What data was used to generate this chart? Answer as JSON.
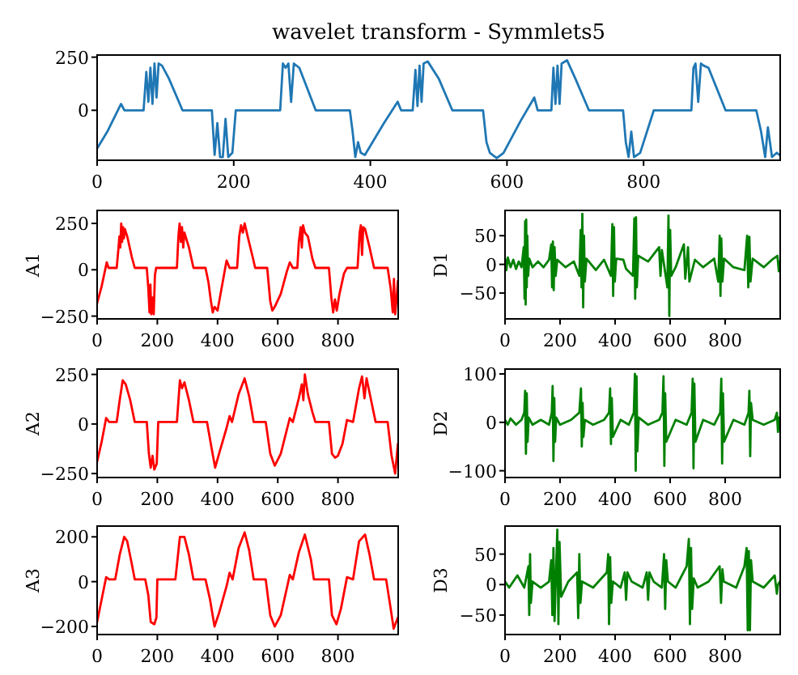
{
  "chart_data": [
    {
      "type": "line",
      "title": "wavelet transform - Symmlets5",
      "color": "#1f77b4",
      "xlim": [
        0,
        1000
      ],
      "ylim": [
        -235,
        260
      ],
      "xticks": [
        0,
        200,
        400,
        600,
        800
      ],
      "yticks": [
        0,
        250
      ],
      "x": [
        0,
        15,
        35,
        40,
        68,
        72,
        75,
        78,
        81,
        84,
        87,
        90,
        95,
        105,
        125,
        168,
        172,
        176,
        180,
        184,
        188,
        192,
        198,
        203,
        268,
        272,
        276,
        280,
        284,
        288,
        296,
        320,
        370,
        374,
        378,
        382,
        386,
        392,
        420,
        440,
        445,
        462,
        466,
        469,
        472,
        475,
        478,
        484,
        500,
        520,
        565,
        570,
        575,
        585,
        595,
        620,
        640,
        645,
        665,
        668,
        671,
        674,
        677,
        680,
        688,
        700,
        720,
        770,
        774,
        778,
        782,
        786,
        795,
        815,
        870,
        873,
        876,
        880,
        884,
        888,
        895,
        920,
        965,
        972,
        978,
        982,
        988,
        995,
        999
      ],
      "values": [
        -180,
        -100,
        30,
        0,
        0,
        180,
        40,
        200,
        30,
        220,
        60,
        220,
        210,
        150,
        0,
        0,
        -210,
        -60,
        -220,
        -220,
        -40,
        -220,
        -200,
        0,
        0,
        220,
        200,
        220,
        40,
        220,
        200,
        0,
        0,
        -100,
        -220,
        -150,
        -200,
        -210,
        -60,
        40,
        0,
        0,
        190,
        20,
        210,
        40,
        220,
        230,
        150,
        0,
        0,
        -150,
        -200,
        -225,
        -200,
        -50,
        60,
        0,
        0,
        200,
        30,
        210,
        30,
        220,
        235,
        150,
        0,
        0,
        -150,
        -220,
        -100,
        -220,
        -200,
        0,
        0,
        200,
        220,
        40,
        220,
        210,
        200,
        0,
        0,
        -100,
        -220,
        -80,
        -220,
        -200,
        -210
      ]
    },
    {
      "type": "line",
      "ylabel": "A1",
      "color": "#ff0000",
      "xlim": [
        0,
        1000
      ],
      "ylim": [
        -265,
        320
      ],
      "xticks": [
        0,
        200,
        400,
        600,
        800
      ],
      "yticks": [
        {
          "value": -250,
          "label": "−250"
        },
        0,
        250
      ],
      "x": [
        0,
        15,
        32,
        38,
        65,
        70,
        74,
        77,
        80,
        83,
        86,
        89,
        92,
        100,
        115,
        125,
        165,
        170,
        174,
        177,
        180,
        184,
        188,
        192,
        196,
        265,
        270,
        274,
        278,
        282,
        286,
        290,
        305,
        320,
        360,
        370,
        378,
        384,
        390,
        400,
        420,
        430,
        440,
        465,
        472,
        478,
        484,
        490,
        500,
        515,
        525,
        565,
        575,
        582,
        590,
        610,
        630,
        640,
        650,
        665,
        670,
        676,
        680,
        684,
        690,
        700,
        715,
        725,
        770,
        778,
        784,
        790,
        796,
        805,
        820,
        830,
        865,
        872,
        876,
        880,
        884,
        890,
        905,
        920,
        965,
        975,
        982,
        986,
        990,
        995,
        999
      ],
      "values": [
        -180,
        -90,
        40,
        10,
        10,
        100,
        180,
        120,
        250,
        150,
        230,
        170,
        220,
        180,
        70,
        10,
        10,
        -100,
        -230,
        -80,
        -240,
        -150,
        -240,
        -30,
        10,
        10,
        180,
        250,
        150,
        230,
        120,
        200,
        120,
        10,
        10,
        -70,
        -170,
        -230,
        -200,
        -220,
        -40,
        50,
        10,
        10,
        180,
        240,
        200,
        250,
        180,
        80,
        10,
        10,
        -170,
        -220,
        -200,
        -130,
        -10,
        40,
        10,
        10,
        150,
        230,
        120,
        240,
        200,
        180,
        60,
        10,
        10,
        -150,
        -230,
        -160,
        -220,
        -130,
        -20,
        10,
        10,
        200,
        240,
        80,
        230,
        220,
        120,
        10,
        10,
        -100,
        -230,
        -50,
        -240,
        -150,
        -60
      ]
    },
    {
      "type": "line",
      "ylabel": "D1",
      "color": "#008000",
      "xlim": [
        0,
        1000
      ],
      "ylim": [
        -95,
        94
      ],
      "xticks": [
        0,
        200,
        400,
        600,
        800
      ],
      "yticks": [
        {
          "value": -50,
          "label": "−50"
        },
        0,
        50
      ],
      "x": [
        0,
        5,
        10,
        20,
        30,
        40,
        50,
        60,
        68,
        71,
        73,
        75,
        77,
        79,
        81,
        84,
        88,
        100,
        120,
        140,
        160,
        168,
        171,
        174,
        177,
        180,
        184,
        190,
        220,
        250,
        270,
        275,
        278,
        281,
        284,
        287,
        290,
        296,
        330,
        360,
        385,
        390,
        393,
        396,
        399,
        404,
        430,
        440,
        465,
        470,
        473,
        476,
        479,
        484,
        520,
        560,
        565,
        570,
        590,
        594,
        597,
        600,
        604,
        620,
        650,
        655,
        665,
        670,
        690,
        720,
        760,
        775,
        780,
        783,
        786,
        790,
        796,
        830,
        870,
        880,
        884,
        888,
        892,
        900,
        940,
        970,
        990,
        995,
        999
      ],
      "values": [
        10,
        -10,
        12,
        -5,
        8,
        -8,
        5,
        -5,
        30,
        -60,
        75,
        -70,
        78,
        -40,
        50,
        -20,
        10,
        -5,
        5,
        -5,
        8,
        35,
        -40,
        40,
        -45,
        30,
        -20,
        8,
        -5,
        5,
        -20,
        60,
        -40,
        88,
        -75,
        50,
        -30,
        10,
        -10,
        8,
        -20,
        70,
        -55,
        65,
        -30,
        10,
        8,
        -8,
        -20,
        80,
        -60,
        82,
        -40,
        15,
        5,
        30,
        -20,
        25,
        -40,
        85,
        -90,
        60,
        -20,
        -5,
        35,
        -25,
        30,
        -30,
        8,
        -5,
        10,
        -30,
        50,
        -55,
        45,
        -30,
        10,
        -5,
        -10,
        50,
        -40,
        48,
        -30,
        10,
        -5,
        8,
        15,
        -12,
        5
      ]
    },
    {
      "type": "line",
      "ylabel": "A2",
      "color": "#ff0000",
      "xlim": [
        0,
        1000
      ],
      "ylim": [
        -270,
        277
      ],
      "xticks": [
        0,
        200,
        400,
        600,
        800
      ],
      "yticks": [
        {
          "value": -250,
          "label": "−250"
        },
        0,
        250
      ],
      "x": [
        0,
        15,
        30,
        40,
        65,
        75,
        85,
        95,
        110,
        125,
        165,
        172,
        178,
        184,
        190,
        198,
        203,
        265,
        275,
        282,
        290,
        305,
        320,
        365,
        380,
        392,
        405,
        430,
        440,
        448,
        470,
        490,
        505,
        520,
        560,
        575,
        590,
        610,
        640,
        650,
        670,
        680,
        685,
        690,
        700,
        715,
        725,
        770,
        780,
        790,
        800,
        815,
        830,
        850,
        870,
        880,
        888,
        895,
        910,
        925,
        965,
        978,
        990,
        999
      ],
      "values": [
        -190,
        -90,
        30,
        10,
        10,
        120,
        220,
        200,
        120,
        10,
        10,
        -150,
        -220,
        -160,
        -230,
        -200,
        10,
        10,
        220,
        180,
        210,
        120,
        10,
        10,
        -120,
        -220,
        -150,
        -20,
        40,
        10,
        150,
        230,
        140,
        10,
        10,
        -150,
        -210,
        -150,
        30,
        10,
        130,
        200,
        120,
        250,
        150,
        60,
        10,
        10,
        -150,
        -170,
        -160,
        -100,
        20,
        10,
        180,
        240,
        130,
        230,
        120,
        10,
        10,
        -160,
        -250,
        -100
      ]
    },
    {
      "type": "line",
      "ylabel": "D2",
      "color": "#008000",
      "xlim": [
        0,
        1000
      ],
      "ylim": [
        -114,
        110
      ],
      "xticks": [
        0,
        200,
        400,
        600,
        800
      ],
      "yticks": [
        {
          "value": -100,
          "label": "−100"
        },
        0,
        100
      ],
      "x": [
        0,
        10,
        20,
        40,
        60,
        70,
        73,
        76,
        79,
        82,
        86,
        100,
        130,
        160,
        170,
        173,
        176,
        179,
        182,
        186,
        200,
        240,
        270,
        276,
        279,
        282,
        285,
        290,
        320,
        360,
        378,
        382,
        385,
        388,
        392,
        420,
        450,
        468,
        472,
        475,
        478,
        481,
        486,
        520,
        560,
        572,
        576,
        579,
        582,
        586,
        620,
        660,
        678,
        682,
        685,
        688,
        692,
        720,
        760,
        782,
        786,
        789,
        792,
        796,
        830,
        870,
        885,
        888,
        891,
        894,
        900,
        940,
        980,
        988,
        992,
        996,
        999
      ],
      "values": [
        5,
        -5,
        8,
        -5,
        5,
        20,
        65,
        -65,
        60,
        -40,
        10,
        -5,
        5,
        -5,
        20,
        75,
        -80,
        50,
        -40,
        10,
        -5,
        5,
        20,
        70,
        -50,
        40,
        -30,
        5,
        -5,
        5,
        20,
        70,
        -45,
        50,
        -30,
        5,
        -5,
        20,
        100,
        -100,
        95,
        -60,
        10,
        -5,
        5,
        20,
        95,
        -90,
        60,
        -40,
        5,
        -5,
        20,
        90,
        -95,
        80,
        -40,
        5,
        -5,
        20,
        90,
        -85,
        60,
        -40,
        5,
        -5,
        20,
        65,
        -70,
        40,
        5,
        -5,
        5,
        20,
        -20,
        10,
        0
      ]
    },
    {
      "type": "line",
      "ylabel": "A3",
      "color": "#ff0000",
      "xlim": [
        0,
        1000
      ],
      "ylim": [
        -236,
        248
      ],
      "xticks": [
        0,
        200,
        400,
        600,
        800
      ],
      "yticks": [
        {
          "value": -200,
          "label": "−200"
        },
        0,
        200
      ],
      "x": [
        0,
        15,
        30,
        40,
        60,
        75,
        90,
        100,
        115,
        125,
        160,
        170,
        178,
        190,
        197,
        200,
        260,
        275,
        290,
        305,
        320,
        360,
        375,
        390,
        405,
        430,
        440,
        450,
        470,
        490,
        505,
        520,
        560,
        575,
        590,
        610,
        640,
        650,
        670,
        690,
        710,
        720,
        770,
        780,
        795,
        810,
        830,
        850,
        870,
        890,
        905,
        920,
        960,
        975,
        985,
        999
      ],
      "values": [
        -180,
        -80,
        20,
        10,
        10,
        120,
        200,
        180,
        80,
        10,
        10,
        -60,
        -180,
        -190,
        -160,
        10,
        10,
        200,
        200,
        120,
        10,
        10,
        -80,
        -200,
        -140,
        -20,
        40,
        10,
        150,
        220,
        140,
        10,
        10,
        -150,
        -200,
        -150,
        30,
        10,
        130,
        210,
        100,
        10,
        10,
        -150,
        -190,
        -120,
        20,
        10,
        180,
        210,
        120,
        10,
        10,
        -120,
        -210,
        -160
      ]
    },
    {
      "type": "line",
      "ylabel": "D3",
      "color": "#008000",
      "xlim": [
        0,
        1000
      ],
      "ylim": [
        -82,
        96
      ],
      "xticks": [
        0,
        200,
        400,
        600,
        800
      ],
      "yticks": [
        {
          "value": -50,
          "label": "−50"
        },
        0,
        50
      ],
      "x": [
        0,
        15,
        30,
        45,
        70,
        85,
        88,
        91,
        94,
        100,
        130,
        160,
        168,
        172,
        176,
        180,
        186,
        190,
        194,
        198,
        204,
        230,
        262,
        266,
        270,
        274,
        280,
        320,
        370,
        375,
        378,
        382,
        386,
        392,
        420,
        435,
        440,
        445,
        460,
        500,
        515,
        520,
        525,
        540,
        570,
        578,
        582,
        586,
        592,
        620,
        660,
        668,
        672,
        676,
        680,
        686,
        700,
        740,
        780,
        785,
        790,
        795,
        840,
        870,
        878,
        882,
        886,
        890,
        894,
        900,
        940,
        980,
        988,
        992,
        999
      ],
      "values": [
        5,
        -5,
        5,
        15,
        -5,
        30,
        -50,
        50,
        -30,
        5,
        -5,
        5,
        40,
        -50,
        60,
        -60,
        30,
        90,
        -65,
        70,
        -20,
        5,
        20,
        -55,
        50,
        -30,
        5,
        -5,
        20,
        50,
        -65,
        45,
        -30,
        5,
        -5,
        20,
        -25,
        20,
        5,
        -5,
        20,
        -25,
        20,
        5,
        -5,
        50,
        -40,
        40,
        5,
        -5,
        30,
        75,
        -65,
        60,
        -40,
        10,
        -5,
        5,
        30,
        -30,
        25,
        5,
        -5,
        30,
        60,
        -75,
        55,
        -75,
        40,
        5,
        -5,
        15,
        -15,
        0,
        5
      ]
    }
  ]
}
